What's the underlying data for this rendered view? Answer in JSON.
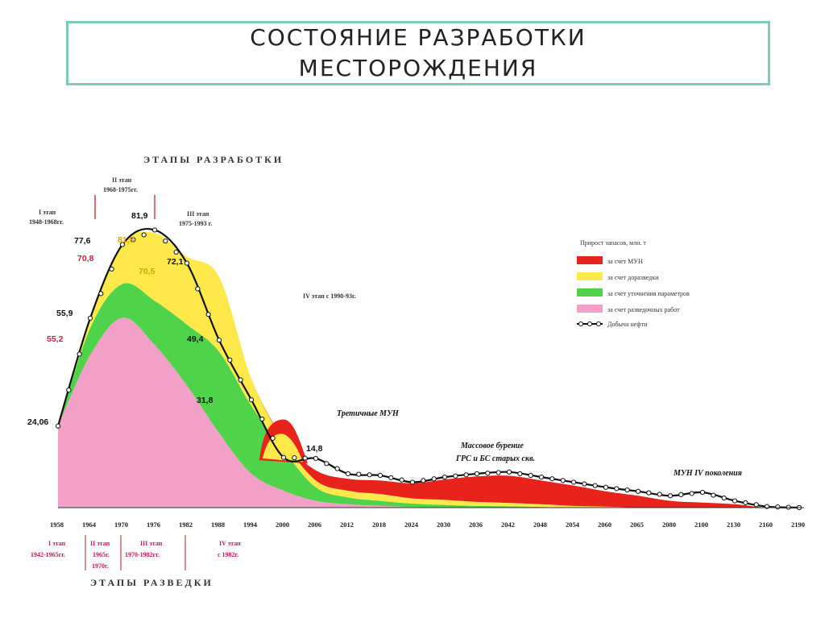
{
  "title": {
    "line1": "СОСТОЯНИЕ РАЗРАБОТКИ",
    "line2": "МЕСТОРОЖДЕНИЯ"
  },
  "chart_data": {
    "type": "area",
    "x_tick_labels": [
      "1958",
      "1964",
      "1970",
      "1976",
      "1982",
      "1988",
      "1994",
      "2000",
      "2006",
      "2012",
      "2018",
      "2024",
      "2030",
      "2036",
      "2042",
      "2048",
      "2054",
      "2060",
      "2065",
      "2080",
      "2100",
      "2130",
      "2160",
      "2190"
    ],
    "series": [
      {
        "name": "за счет разведочных работ",
        "color": "#f2a0c8",
        "values": [
          24,
          45,
          56,
          48,
          36,
          22,
          10,
          5,
          2,
          1,
          0.5,
          0.2,
          0,
          0,
          0,
          0,
          0,
          0,
          0,
          0,
          0,
          0,
          0,
          0
        ]
      },
      {
        "name": "за счет уточнения параметров",
        "color": "#4fd34a",
        "values": [
          0,
          8,
          10,
          13,
          18,
          24,
          20,
          12,
          4,
          2,
          1.5,
          1,
          0.8,
          0.5,
          0.4,
          0.2,
          0,
          0,
          0,
          0,
          0,
          0,
          0,
          0
        ]
      },
      {
        "name": "за счет доразведки",
        "color": "#ffe94a",
        "values": [
          0,
          3,
          12,
          20,
          20,
          22,
          8,
          3,
          2,
          2,
          2,
          1.5,
          1.5,
          1.2,
          1,
          0.8,
          0.5,
          0.3,
          0,
          0,
          0,
          0,
          0,
          0
        ]
      },
      {
        "name": "за счет МУН",
        "color": "#e8231c",
        "values": [
          0,
          0,
          0,
          0,
          0,
          0,
          0,
          0,
          3,
          3.5,
          4,
          4.5,
          6,
          7.5,
          8,
          7,
          6,
          4.5,
          3.5,
          2,
          1.5,
          1,
          0,
          0
        ]
      }
    ],
    "line_series": {
      "name": "Добыча нефти",
      "values": [
        24.06,
        55.9,
        77.6,
        81.9,
        72.1,
        49.4,
        31.8,
        14.8,
        14.5,
        10,
        9.5,
        7.5,
        9,
        10,
        10.5,
        9,
        7.5,
        6,
        4.8,
        3.5,
        4.5,
        2,
        0.3,
        0
      ]
    },
    "value_labels": {
      "production": [
        "24,06",
        "55,9",
        "77,6",
        "81,9",
        "72,1",
        "49,4",
        "31,8",
        "14,8"
      ],
      "other": [
        "55,2",
        "70,8",
        "81,5",
        "70,5"
      ]
    },
    "legend": {
      "title": "Прирост запасов, млн. т",
      "items": [
        "за счет МУН",
        "за счет доразведки",
        "за счет уточнения параметров",
        "за счет разведочных работ",
        "Добыча нефти"
      ]
    },
    "top_header": "ЭТАПЫ РАЗРАБОТКИ",
    "bottom_header": "ЭТАПЫ РАЗВЕДКИ",
    "dev_stages": [
      {
        "name": "I этап",
        "years": "1948-1968гг."
      },
      {
        "name": "II этап",
        "years": "1968-1975гг."
      },
      {
        "name": "III этап",
        "years": "1975-1993 г."
      },
      {
        "name": "IV этап с 1990-93г."
      }
    ],
    "exploration_stages": [
      {
        "name": "I этап",
        "years": "1942-1965гг."
      },
      {
        "name": "II этап",
        "years": "1965г.",
        "extra": "1970г."
      },
      {
        "name": "III этап",
        "years": "1970-1982гг."
      },
      {
        "name": "IV этап",
        "years": "с 1982г."
      }
    ],
    "annotations": {
      "tertiary": "Третичные МУН",
      "drilling1": "Массовое бурение",
      "drilling2": "ГРС и БС старых скв.",
      "mun4": "МУН  IV поколения"
    }
  }
}
